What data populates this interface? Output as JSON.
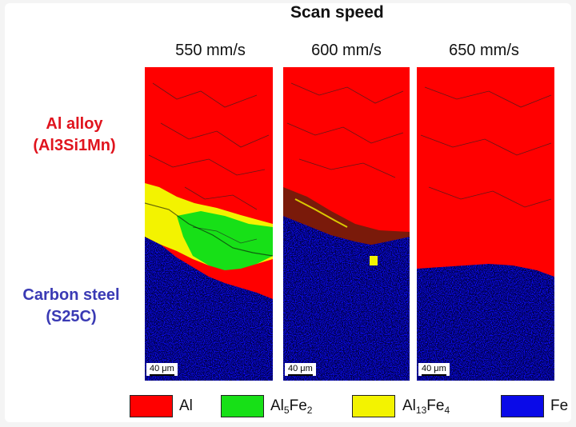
{
  "figure": {
    "title": "Scan speed",
    "speeds": [
      "550 mm/s",
      "600 mm/s",
      "650 mm/s"
    ],
    "top_material": {
      "line1": "Al alloy",
      "line2": "(Al3Si1Mn)"
    },
    "bottom_material": {
      "line1": "Carbon steel",
      "line2": "(S25C)"
    },
    "scale_bar": "40 μm",
    "legend": [
      {
        "base": "Al",
        "sub1": "",
        "mid": "",
        "sub2": "",
        "color": "#ff0000"
      },
      {
        "base": "Al",
        "sub1": "5",
        "mid": "Fe",
        "sub2": "2",
        "color": "#17e017"
      },
      {
        "base": "Al",
        "sub1": "13",
        "mid": "Fe",
        "sub2": "4",
        "color": "#f3f300"
      },
      {
        "base": "Fe",
        "sub1": "",
        "mid": "",
        "sub2": "",
        "color": "#0a0ae8"
      }
    ],
    "colors": {
      "al": "#ff0000",
      "al5fe2": "#17e017",
      "al13fe4": "#f3f300",
      "fe": "#0a0ae8",
      "top_label": "#e0141e",
      "bottom_label": "#3a3ab4"
    }
  }
}
